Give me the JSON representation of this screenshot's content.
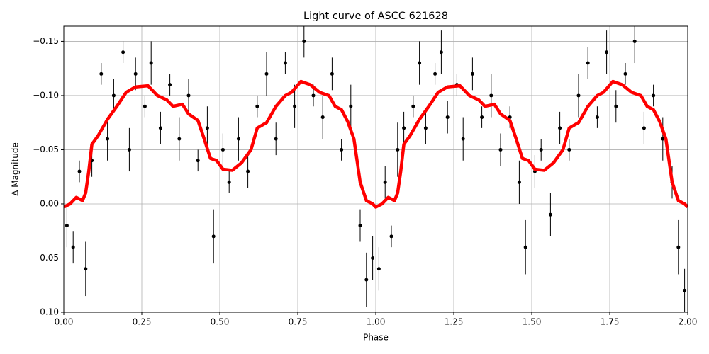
{
  "chart_data": {
    "type": "scatter",
    "title": "Light curve of ASCC 621628",
    "x_label": "Phase",
    "y_label": "Δ Magnitude",
    "grid": true,
    "xlim": [
      0,
      2
    ],
    "ylim": [
      0.1,
      -0.164
    ],
    "xticks": [
      {
        "value": 0,
        "label": "0.00"
      },
      0.25,
      {
        "value": 0.5,
        "label": "0.50"
      },
      0.75,
      {
        "value": 1,
        "label": "1.00"
      },
      1.25,
      {
        "value": 1.5,
        "label": "1.50"
      },
      1.75,
      {
        "value": 2,
        "label": "2.00"
      }
    ],
    "yticks": [
      {
        "value": -0.15,
        "label": "−0.15"
      },
      {
        "value": -0.1,
        "label": "−0.10"
      },
      {
        "value": -0.05,
        "label": "−0.05"
      },
      {
        "value": 0,
        "label": "0.00"
      },
      0.05,
      {
        "value": 0.1,
        "label": "0.10"
      }
    ],
    "series": [
      {
        "type": "scatter",
        "color": "#000000",
        "x": [
          0.01,
          0.03,
          0.05,
          0.07,
          0.09,
          0.12,
          0.14,
          0.16,
          0.19,
          0.21,
          0.23,
          0.26,
          0.28,
          0.31,
          0.34,
          0.37,
          0.4,
          0.43,
          0.46,
          0.48,
          0.51,
          0.53,
          0.56,
          0.59,
          0.62,
          0.65,
          0.68,
          0.71,
          0.74,
          0.77,
          0.8,
          0.83,
          0.86,
          0.89,
          0.92,
          0.95,
          0.97,
          0.99,
          1.01,
          1.03,
          1.05,
          1.07,
          1.09,
          1.12,
          1.14,
          1.16,
          1.19,
          1.21,
          1.23,
          1.26,
          1.28,
          1.31,
          1.34,
          1.37,
          1.4,
          1.43,
          1.46,
          1.48,
          1.51,
          1.53,
          1.56,
          1.59,
          1.62,
          1.65,
          1.68,
          1.71,
          1.74,
          1.77,
          1.8,
          1.83,
          1.86,
          1.89,
          1.92,
          1.95,
          1.97,
          1.99
        ],
        "values": [
          0.02,
          0.04,
          -0.03,
          0.06,
          -0.04,
          -0.12,
          -0.06,
          -0.1,
          -0.14,
          -0.05,
          -0.12,
          -0.09,
          -0.13,
          -0.07,
          -0.11,
          -0.06,
          -0.1,
          -0.04,
          -0.07,
          0.03,
          -0.05,
          -0.02,
          -0.06,
          -0.03,
          -0.09,
          -0.12,
          -0.06,
          -0.13,
          -0.09,
          -0.15,
          -0.1,
          -0.08,
          -0.12,
          -0.05,
          -0.09,
          0.02,
          0.07,
          0.05,
          0.06,
          -0.02,
          0.03,
          -0.05,
          -0.07,
          -0.09,
          -0.13,
          -0.07,
          -0.12,
          -0.14,
          -0.08,
          -0.11,
          -0.06,
          -0.12,
          -0.08,
          -0.1,
          -0.05,
          -0.08,
          -0.02,
          0.04,
          -0.03,
          -0.05,
          0.01,
          -0.07,
          -0.05,
          -0.1,
          -0.13,
          -0.08,
          -0.14,
          -0.09,
          -0.12,
          -0.15,
          -0.07,
          -0.1,
          -0.06,
          -0.02,
          0.04,
          0.08
        ],
        "errors": [
          0.02,
          0.015,
          0.01,
          0.025,
          0.015,
          0.01,
          0.02,
          0.015,
          0.01,
          0.02,
          0.015,
          0.01,
          0.02,
          0.015,
          0.01,
          0.02,
          0.015,
          0.01,
          0.02,
          0.025,
          0.015,
          0.01,
          0.02,
          0.015,
          0.01,
          0.02,
          0.015,
          0.01,
          0.02,
          0.015,
          0.01,
          0.02,
          0.015,
          0.01,
          0.02,
          0.015,
          0.025,
          0.02,
          0.02,
          0.015,
          0.01,
          0.025,
          0.015,
          0.01,
          0.02,
          0.015,
          0.01,
          0.02,
          0.015,
          0.01,
          0.02,
          0.015,
          0.01,
          0.02,
          0.015,
          0.01,
          0.02,
          0.025,
          0.015,
          0.01,
          0.02,
          0.015,
          0.01,
          0.02,
          0.015,
          0.01,
          0.02,
          0.015,
          0.01,
          0.02,
          0.015,
          0.01,
          0.02,
          0.015,
          0.025,
          0.02
        ]
      },
      {
        "type": "line",
        "color": "#ff0000",
        "x": [
          0,
          0.02,
          0.04,
          0.06,
          0.07,
          0.08,
          0.09,
          0.11,
          0.14,
          0.17,
          0.2,
          0.23,
          0.27,
          0.3,
          0.33,
          0.35,
          0.38,
          0.4,
          0.43,
          0.45,
          0.47,
          0.49,
          0.51,
          0.54,
          0.57,
          0.6,
          0.62,
          0.65,
          0.68,
          0.71,
          0.73,
          0.76,
          0.79,
          0.82,
          0.85,
          0.87,
          0.89,
          0.91,
          0.93,
          0.95,
          0.97,
          0.99,
          1,
          1.02,
          1.04,
          1.06,
          1.07,
          1.08,
          1.09,
          1.11,
          1.14,
          1.17,
          1.2,
          1.23,
          1.27,
          1.3,
          1.33,
          1.35,
          1.38,
          1.4,
          1.43,
          1.45,
          1.47,
          1.49,
          1.51,
          1.54,
          1.57,
          1.6,
          1.62,
          1.65,
          1.68,
          1.71,
          1.73,
          1.76,
          1.79,
          1.82,
          1.85,
          1.87,
          1.89,
          1.91,
          1.93,
          1.95,
          1.97,
          1.99,
          2
        ],
        "values": [
          0.003,
          0,
          -0.006,
          -0.003,
          -0.01,
          -0.03,
          -0.055,
          -0.063,
          -0.078,
          -0.09,
          -0.103,
          -0.108,
          -0.109,
          -0.1,
          -0.096,
          -0.09,
          -0.092,
          -0.083,
          -0.077,
          -0.06,
          -0.042,
          -0.04,
          -0.032,
          -0.031,
          -0.038,
          -0.05,
          -0.07,
          -0.075,
          -0.09,
          -0.1,
          -0.103,
          -0.113,
          -0.11,
          -0.103,
          -0.1,
          -0.09,
          -0.087,
          -0.076,
          -0.06,
          -0.02,
          -0.003,
          0,
          0.003,
          0,
          -0.006,
          -0.003,
          -0.01,
          -0.03,
          -0.055,
          -0.063,
          -0.078,
          -0.09,
          -0.103,
          -0.108,
          -0.109,
          -0.1,
          -0.096,
          -0.09,
          -0.092,
          -0.083,
          -0.077,
          -0.06,
          -0.042,
          -0.04,
          -0.032,
          -0.031,
          -0.038,
          -0.05,
          -0.07,
          -0.075,
          -0.09,
          -0.1,
          -0.103,
          -0.113,
          -0.11,
          -0.103,
          -0.1,
          -0.09,
          -0.087,
          -0.076,
          -0.06,
          -0.02,
          -0.003,
          0,
          0.003
        ]
      }
    ]
  }
}
